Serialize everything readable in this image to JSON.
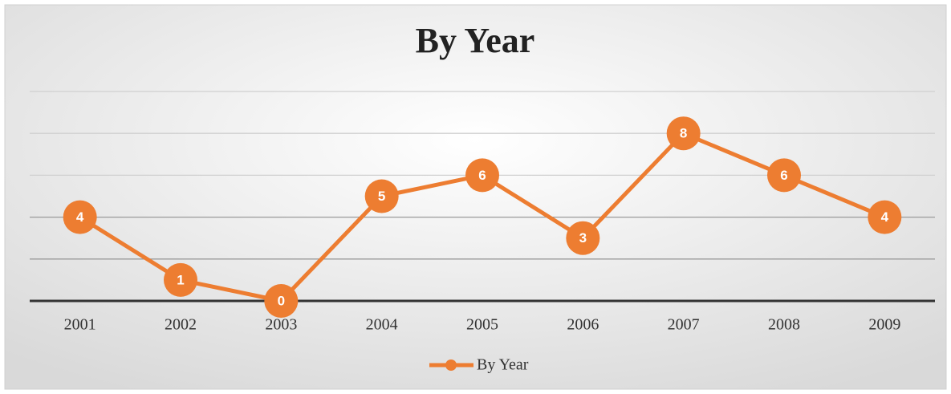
{
  "chart_data": {
    "type": "line",
    "title": "By Year",
    "categories": [
      "2001",
      "2002",
      "2003",
      "2004",
      "2005",
      "2006",
      "2007",
      "2008",
      "2009"
    ],
    "series": [
      {
        "name": "By Year",
        "color": "#ed7d31",
        "values": [
          4,
          1,
          0,
          5,
          6,
          3,
          8,
          6,
          4
        ]
      }
    ],
    "ylim": [
      0,
      10
    ],
    "yticks": [
      0,
      2,
      4,
      6,
      8,
      10
    ],
    "grid": true,
    "legend": "bottom"
  }
}
